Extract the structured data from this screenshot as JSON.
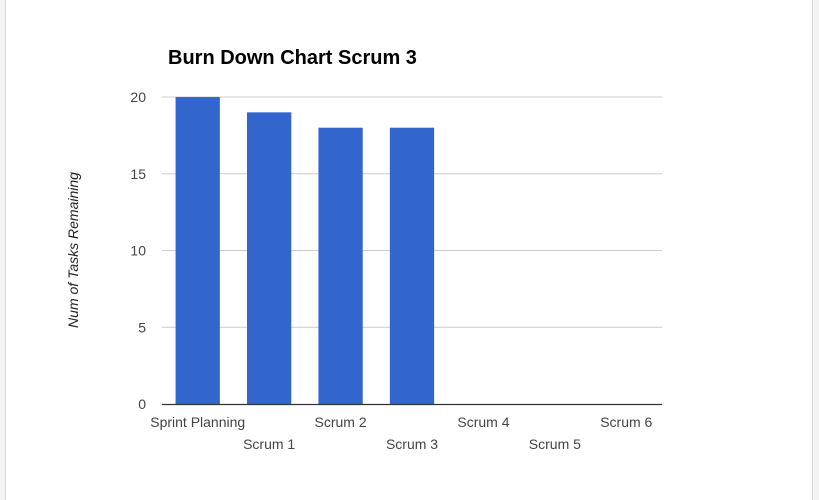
{
  "chart_data": {
    "type": "bar",
    "title": "Burn Down Chart Scrum 3",
    "xlabel": "",
    "ylabel": "Num of Tasks Remaining",
    "categories": [
      "Sprint Planning",
      "Scrum 1",
      "Scrum 2",
      "Scrum 3",
      "Scrum 4",
      "Scrum 5",
      "Scrum 6"
    ],
    "values": [
      20,
      19,
      18,
      18,
      0,
      0,
      0
    ],
    "ylim": [
      0,
      20
    ],
    "yticks": [
      0,
      5,
      10,
      15,
      20
    ],
    "grid": true,
    "legend": "none",
    "bar_color": "#3366cc",
    "grid_color": "#cccccc",
    "axis_color": "#333333"
  }
}
